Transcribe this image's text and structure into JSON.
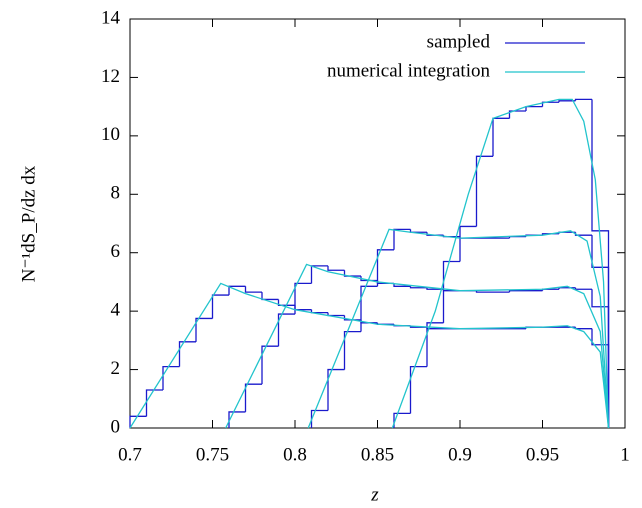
{
  "chart_data": {
    "type": "line",
    "xlabel": "z",
    "ylabel": "N⁻¹dS_P/dz dx",
    "xlim": [
      0.7,
      1
    ],
    "xticks": [
      0.7,
      0.75,
      0.8,
      0.85,
      0.9,
      0.95,
      1
    ],
    "ylim": [
      0,
      14
    ],
    "yticks": [
      0,
      2,
      4,
      6,
      8,
      10,
      12,
      14
    ],
    "legend": "upper right",
    "series": [
      {
        "name": "sampled",
        "color": "#1a1acc",
        "drawstyle": "steps",
        "curves": [
          {
            "bins": [
              0.7,
              0.71,
              0.72,
              0.73,
              0.74,
              0.75,
              0.76,
              0.77,
              0.78,
              0.79,
              0.8,
              0.81,
              0.82,
              0.83,
              0.84,
              0.85,
              0.86,
              0.87,
              0.88,
              0.89,
              0.9,
              0.91,
              0.92,
              0.93,
              0.94,
              0.95,
              0.96,
              0.97,
              0.98,
              0.99
            ],
            "values": [
              0.4,
              1.3,
              2.1,
              2.95,
              3.75,
              4.55,
              4.85,
              4.65,
              4.4,
              4.2,
              4.05,
              3.95,
              3.85,
              3.7,
              3.6,
              3.55,
              3.5,
              3.45,
              3.4,
              3.4,
              3.4,
              3.4,
              3.4,
              3.4,
              3.45,
              3.45,
              3.45,
              3.4,
              2.85
            ]
          },
          {
            "bins": [
              0.76,
              0.77,
              0.78,
              0.79,
              0.8,
              0.81,
              0.82,
              0.83,
              0.84,
              0.85,
              0.86,
              0.87,
              0.88,
              0.89,
              0.9,
              0.91,
              0.92,
              0.93,
              0.94,
              0.95,
              0.96,
              0.97,
              0.98,
              0.99
            ],
            "values": [
              0.55,
              1.5,
              2.8,
              3.9,
              4.95,
              5.55,
              5.4,
              5.2,
              5.05,
              4.95,
              4.85,
              4.8,
              4.75,
              4.7,
              4.7,
              4.65,
              4.65,
              4.7,
              4.7,
              4.75,
              4.8,
              4.75,
              4.15
            ]
          },
          {
            "bins": [
              0.81,
              0.82,
              0.83,
              0.84,
              0.85,
              0.86,
              0.87,
              0.88,
              0.89,
              0.9,
              0.91,
              0.92,
              0.93,
              0.94,
              0.95,
              0.96,
              0.97,
              0.98,
              0.99
            ],
            "values": [
              0.6,
              2.0,
              3.3,
              4.85,
              6.1,
              6.8,
              6.7,
              6.6,
              6.55,
              6.5,
              6.5,
              6.5,
              6.55,
              6.6,
              6.65,
              6.7,
              6.6,
              5.5
            ]
          },
          {
            "bins": [
              0.86,
              0.87,
              0.88,
              0.89,
              0.9,
              0.91,
              0.92,
              0.93,
              0.94,
              0.95,
              0.96,
              0.97,
              0.98,
              0.99
            ],
            "values": [
              0.5,
              2.1,
              3.6,
              5.7,
              6.9,
              9.3,
              10.6,
              10.85,
              11.0,
              11.15,
              11.2,
              11.25,
              6.75
            ]
          }
        ]
      },
      {
        "name": "numerical integration",
        "color": "#22c4cc",
        "drawstyle": "line",
        "curves": [
          {
            "x": [
              0.7,
              0.755,
              0.77,
              0.8,
              0.85,
              0.9,
              0.95,
              0.965,
              0.975,
              0.985,
              0.99
            ],
            "values": [
              0,
              4.95,
              4.6,
              4.05,
              3.55,
              3.4,
              3.45,
              3.5,
              3.3,
              2.6,
              0
            ]
          },
          {
            "x": [
              0.758,
              0.807,
              0.82,
              0.85,
              0.9,
              0.95,
              0.965,
              0.975,
              0.985,
              0.99
            ],
            "values": [
              0,
              5.6,
              5.35,
              5.0,
              4.7,
              4.75,
              4.85,
              4.6,
              3.3,
              0
            ]
          },
          {
            "x": [
              0.808,
              0.857,
              0.87,
              0.9,
              0.95,
              0.967,
              0.977,
              0.985,
              0.99
            ],
            "values": [
              0,
              6.8,
              6.7,
              6.5,
              6.6,
              6.75,
              6.4,
              4.5,
              0
            ]
          },
          {
            "x": [
              0.859,
              0.885,
              0.905,
              0.92,
              0.94,
              0.96,
              0.968,
              0.975,
              0.982,
              0.987,
              0.99
            ],
            "values": [
              0,
              4.0,
              8.0,
              10.6,
              11.0,
              11.25,
              11.25,
              10.5,
              8.5,
              5,
              0
            ]
          }
        ]
      }
    ]
  }
}
